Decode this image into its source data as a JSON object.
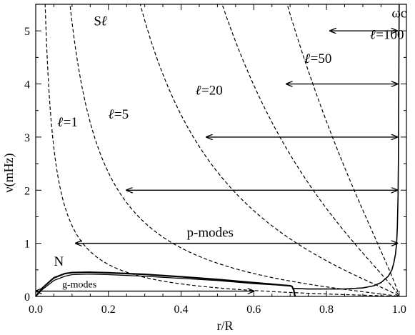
{
  "chart_data": {
    "type": "line",
    "title": "",
    "xlabel": "r/R",
    "ylabel": "ν(mHz)",
    "xlim": [
      0.0,
      1.02
    ],
    "ylim": [
      0.0,
      5.5
    ],
    "grid": false,
    "x_ticks": [
      "0.0",
      "0.2",
      "0.4",
      "0.6",
      "0.8",
      "1.0"
    ],
    "y_ticks": [
      "0",
      "1",
      "2",
      "3",
      "4",
      "5"
    ],
    "x_tick_values": [
      0.0,
      0.2,
      0.4,
      0.6,
      0.8,
      1.0
    ],
    "y_tick_values": [
      0,
      1,
      2,
      3,
      4,
      5
    ],
    "lamb_curves": [
      {
        "label": "ℓ=1",
        "l": 1,
        "label_pos": [
          0.06,
          3.2
        ]
      },
      {
        "label": "ℓ=5",
        "l": 5,
        "label_pos": [
          0.2,
          3.35
        ]
      },
      {
        "label": "ℓ=20",
        "l": 20,
        "label_pos": [
          0.44,
          3.8
        ]
      },
      {
        "label": "ℓ=50",
        "l": 50,
        "label_pos": [
          0.74,
          4.4
        ]
      },
      {
        "label": "ℓ=100",
        "l": 100,
        "label_pos": [
          0.92,
          4.85
        ]
      }
    ],
    "lamb_label": "Sℓ",
    "lamb_label_pos": [
      0.16,
      5.1
    ],
    "buoyancy_label": "N",
    "buoyancy_label_pos": [
      0.05,
      0.58
    ],
    "cutoff_label": "ωc",
    "cutoff_label_pos": [
      1.0,
      5.25
    ],
    "buoyancy_curve": {
      "x": [
        0.0,
        0.02,
        0.05,
        0.08,
        0.1,
        0.15,
        0.2,
        0.3,
        0.4,
        0.5,
        0.6,
        0.65,
        0.7,
        0.705,
        0.71,
        0.712,
        0.714
      ],
      "y": [
        0.0,
        0.17,
        0.35,
        0.43,
        0.45,
        0.455,
        0.445,
        0.415,
        0.37,
        0.32,
        0.26,
        0.23,
        0.2,
        0.19,
        0.12,
        0.04,
        0.0
      ]
    },
    "buoyancy_curve_inner": {
      "x": [
        0.0,
        0.02,
        0.05,
        0.08,
        0.1,
        0.15,
        0.2,
        0.3,
        0.4,
        0.5,
        0.6,
        0.65,
        0.7
      ],
      "y": [
        0.0,
        0.14,
        0.3,
        0.38,
        0.41,
        0.42,
        0.41,
        0.38,
        0.34,
        0.3,
        0.24,
        0.22,
        0.2
      ]
    },
    "cutoff_curve": {
      "x": [
        0.71,
        0.75,
        0.8,
        0.85,
        0.9,
        0.93,
        0.95,
        0.97,
        0.98,
        0.985,
        0.99,
        0.993,
        0.995,
        0.997,
        0.998,
        1.0
      ],
      "y": [
        0.15,
        0.14,
        0.14,
        0.14,
        0.16,
        0.2,
        0.26,
        0.38,
        0.5,
        0.62,
        0.8,
        1.0,
        1.3,
        1.9,
        2.6,
        5.5
      ]
    },
    "arrows": [
      {
        "name": "g-modes",
        "x1": 0.0,
        "x2": 0.6,
        "y": 0.1,
        "label": "g-modes"
      },
      {
        "name": "p-mode-l1",
        "x1": 0.11,
        "x2": 0.995,
        "y": 1.0,
        "label": "p-modes"
      },
      {
        "name": "p-mode-l5",
        "x1": 0.25,
        "x2": 0.995,
        "y": 2.0
      },
      {
        "name": "p-mode-l20",
        "x1": 0.47,
        "x2": 0.995,
        "y": 3.0
      },
      {
        "name": "p-mode-l50",
        "x1": 0.69,
        "x2": 0.995,
        "y": 4.0
      },
      {
        "name": "p-mode-l100",
        "x1": 0.81,
        "x2": 0.995,
        "y": 5.0
      }
    ]
  }
}
